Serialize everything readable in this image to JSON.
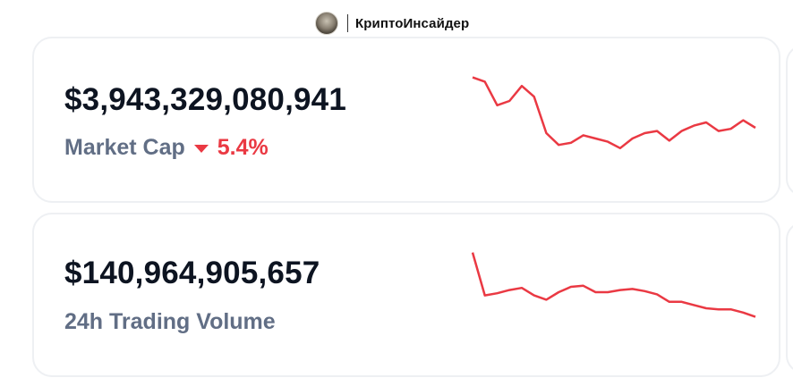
{
  "header": {
    "brand": "КриптоИнсайдер",
    "avatar_icon": "avatar-portrait-icon"
  },
  "cards": [
    {
      "value": "$3,943,329,080,941",
      "label": "Market Cap",
      "change": "5.4%",
      "change_direction": "down",
      "change_icon": "caret-down-icon"
    },
    {
      "value": "$140,964,905,657",
      "label": "24h Trading Volume"
    }
  ],
  "colors": {
    "negative": "#ea3943",
    "value_text": "#0d1421",
    "label_text": "#616e85"
  },
  "chart_data": [
    {
      "type": "line",
      "series": [
        {
          "values": [
            92,
            88,
            66,
            70,
            84,
            74,
            40,
            29,
            31,
            38,
            35,
            32,
            26,
            35,
            40,
            42,
            33,
            42,
            47,
            50,
            42,
            44,
            52,
            45
          ]
        }
      ]
    },
    {
      "type": "line",
      "series": [
        {
          "values": [
            92,
            52,
            54,
            57,
            59,
            52,
            48,
            55,
            60,
            61,
            55,
            55,
            57,
            58,
            56,
            53,
            46,
            46,
            43,
            40,
            39,
            39,
            36,
            32
          ]
        }
      ]
    }
  ]
}
